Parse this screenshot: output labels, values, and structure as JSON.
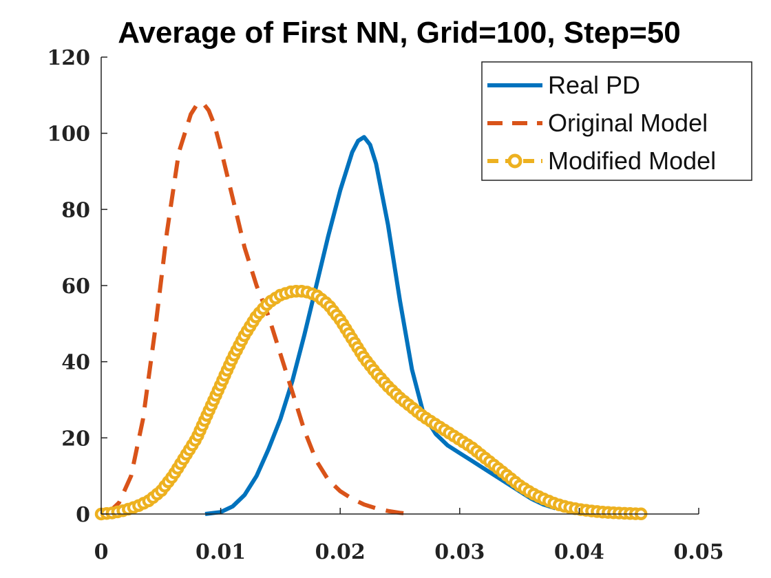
{
  "chart_data": {
    "type": "line",
    "title": "Average of First NN, Grid=100, Step=50",
    "xlabel": "",
    "ylabel": "",
    "xlim": [
      0,
      0.05
    ],
    "ylim": [
      0,
      120
    ],
    "xticks": [
      0,
      0.01,
      0.02,
      0.03,
      0.04,
      0.05
    ],
    "xtick_labels": [
      "0",
      "0.01",
      "0.02",
      "0.03",
      "0.04",
      "0.05"
    ],
    "yticks": [
      0,
      20,
      40,
      60,
      80,
      100,
      120
    ],
    "ytick_labels": [
      "0",
      "20",
      "40",
      "60",
      "80",
      "100",
      "120"
    ],
    "grid": false,
    "legend_position": "top-right",
    "series": [
      {
        "name": "Real PD",
        "color": "#0072BD",
        "style": "solid",
        "x": [
          0.0087,
          0.01,
          0.011,
          0.012,
          0.013,
          0.014,
          0.015,
          0.016,
          0.017,
          0.018,
          0.019,
          0.02,
          0.021,
          0.0215,
          0.022,
          0.0225,
          0.023,
          0.024,
          0.025,
          0.026,
          0.027,
          0.028,
          0.029,
          0.03,
          0.031,
          0.032,
          0.033,
          0.034,
          0.035,
          0.036,
          0.037,
          0.038
        ],
        "y": [
          0,
          0.5,
          2,
          5,
          10,
          17,
          25,
          35,
          47,
          60,
          73,
          85,
          95,
          98,
          99,
          97,
          92,
          76,
          56,
          38,
          26,
          21,
          18,
          16,
          14,
          12,
          10,
          8,
          6,
          4,
          2.5,
          1.5
        ]
      },
      {
        "name": "Original Model",
        "color": "#D95319",
        "style": "dashed",
        "x": [
          0.0005,
          0.0015,
          0.0025,
          0.0035,
          0.0045,
          0.0055,
          0.0065,
          0.0075,
          0.008,
          0.0085,
          0.009,
          0.0095,
          0.01,
          0.011,
          0.012,
          0.013,
          0.014,
          0.015,
          0.016,
          0.017,
          0.018,
          0.019,
          0.02,
          0.021,
          0.022,
          0.023,
          0.024,
          0.025,
          0.026
        ],
        "y": [
          0,
          3,
          10,
          25,
          48,
          74,
          95,
          105,
          107.5,
          108,
          106,
          102,
          96,
          83,
          70,
          60,
          52,
          42,
          32,
          22,
          14,
          9,
          6,
          4,
          2.5,
          1.5,
          0.8,
          0.3,
          0
        ]
      },
      {
        "name": "Modified Model",
        "color": "#EDB120",
        "style": "dash-circle",
        "x": [
          0,
          0.001,
          0.002,
          0.003,
          0.004,
          0.005,
          0.006,
          0.007,
          0.008,
          0.009,
          0.01,
          0.011,
          0.012,
          0.013,
          0.014,
          0.015,
          0.016,
          0.017,
          0.018,
          0.019,
          0.02,
          0.021,
          0.022,
          0.023,
          0.024,
          0.025,
          0.026,
          0.027,
          0.028,
          0.029,
          0.03,
          0.031,
          0.032,
          0.033,
          0.034,
          0.035,
          0.036,
          0.037,
          0.038,
          0.039,
          0.04,
          0.041,
          0.042,
          0.043,
          0.044,
          0.045,
          0.0455
        ],
        "y": [
          0,
          0.3,
          1,
          2,
          3.5,
          6,
          10,
          15,
          20,
          27,
          34,
          41,
          47,
          52,
          55.5,
          57.5,
          58.5,
          58.5,
          57.5,
          55,
          51,
          46,
          41,
          37,
          33.5,
          30.5,
          28,
          25.5,
          23.5,
          21.5,
          19.5,
          17.5,
          15,
          12.5,
          10,
          7.5,
          5.5,
          4,
          2.7,
          1.8,
          1.2,
          0.8,
          0.5,
          0.3,
          0.15,
          0.05,
          0
        ]
      }
    ]
  }
}
